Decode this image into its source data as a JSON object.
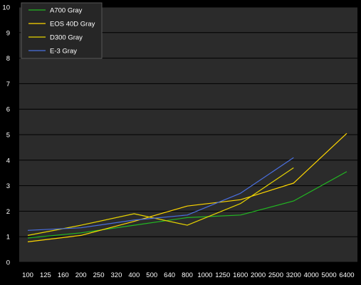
{
  "chart_data": {
    "type": "line",
    "title": "",
    "xlabel": "",
    "ylabel": "",
    "categories": [
      "100",
      "125",
      "160",
      "200",
      "250",
      "320",
      "400",
      "500",
      "640",
      "800",
      "1000",
      "1250",
      "1600",
      "2000",
      "2500",
      "3200",
      "4000",
      "5000",
      "6400"
    ],
    "ylim": [
      0,
      10
    ],
    "yticks": [
      0,
      1,
      2,
      3,
      4,
      5,
      6,
      7,
      8,
      9,
      10
    ],
    "grid": "horizontal",
    "legend_position": "top-left",
    "series": [
      {
        "name": "A700 Gray",
        "color": "#22b822",
        "values": [
          0.95,
          null,
          null,
          1.15,
          null,
          null,
          1.45,
          null,
          null,
          1.75,
          null,
          null,
          1.85,
          null,
          null,
          2.4,
          null,
          null,
          3.55
        ]
      },
      {
        "name": "EOS 40D Gray",
        "color": "#ffd700",
        "values": [
          0.8,
          null,
          null,
          1.05,
          null,
          null,
          1.6,
          null,
          null,
          2.2,
          null,
          null,
          2.45,
          null,
          null,
          3.1,
          null,
          null,
          5.05
        ]
      },
      {
        "name": "D300 Gray",
        "color": "#e6d300",
        "values": [
          1.05,
          null,
          null,
          1.45,
          null,
          null,
          1.9,
          null,
          null,
          1.45,
          null,
          null,
          2.3,
          null,
          null,
          3.7,
          null,
          null,
          null
        ]
      },
      {
        "name": "E-3 Gray",
        "color": "#4a6fe0",
        "values": [
          1.25,
          null,
          null,
          1.35,
          null,
          null,
          1.65,
          null,
          null,
          1.85,
          null,
          null,
          2.7,
          null,
          null,
          4.1,
          null,
          null,
          null
        ]
      }
    ]
  }
}
